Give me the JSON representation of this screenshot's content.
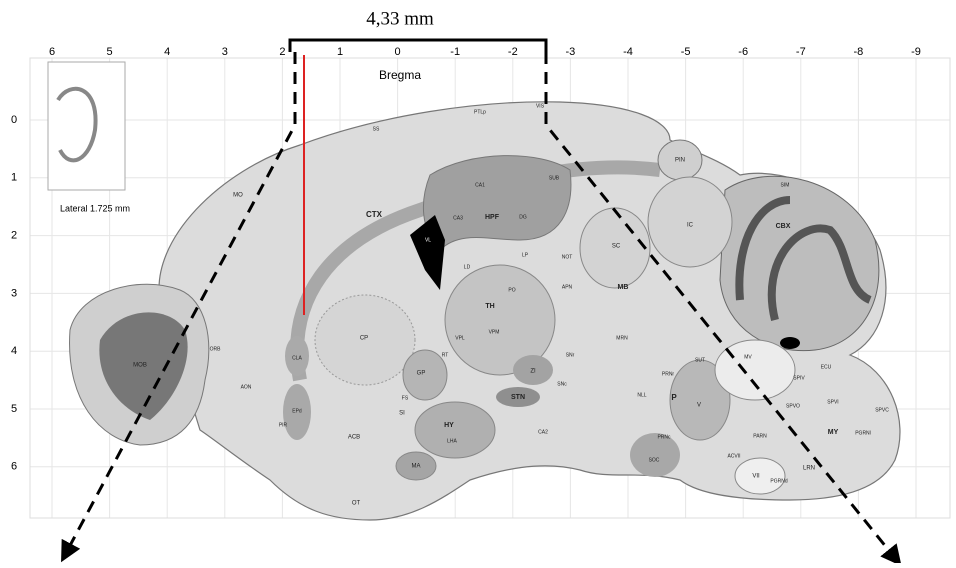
{
  "scale_label": "4,33 mm",
  "reference": "Bregma",
  "inset_caption": "Lateral 1.725 mm",
  "top_axis": [
    "6",
    "5",
    "4",
    "3",
    "2",
    "1",
    "0",
    "-1",
    "-2",
    "-3",
    "-4",
    "-5",
    "-6",
    "-7",
    "-8",
    "-9"
  ],
  "left_axis": [
    "0",
    "1",
    "2",
    "3",
    "4",
    "5",
    "6"
  ],
  "regions": [
    "CTX",
    "HPF",
    "CA1",
    "CA3",
    "DG",
    "SUB",
    "LD",
    "LP",
    "PO",
    "TH",
    "VPL",
    "VPM",
    "RT",
    "GP",
    "CP",
    "CLA",
    "AON",
    "MOB",
    "EPd",
    "PIR",
    "ACB",
    "SI",
    "FS",
    "HY",
    "LHA",
    "MA",
    "ZI",
    "STN",
    "SNr",
    "SNc",
    "APN",
    "SC",
    "IC",
    "PIN",
    "MB",
    "MRN",
    "CBX",
    "SIM",
    "MV",
    "SPIV",
    "SPVO",
    "SPVI",
    "SPVC",
    "MY",
    "PARN",
    "PGRNl",
    "LRN",
    "PGRNd",
    "VII",
    "ACVII",
    "SOC",
    "PRNc",
    "NLL",
    "P",
    "V",
    "PRNr",
    "SUT",
    "CA2",
    "OT",
    "MO",
    "SS",
    "VIS",
    "PTLp",
    "ORB",
    "ECU",
    "VL",
    "NOT"
  ]
}
